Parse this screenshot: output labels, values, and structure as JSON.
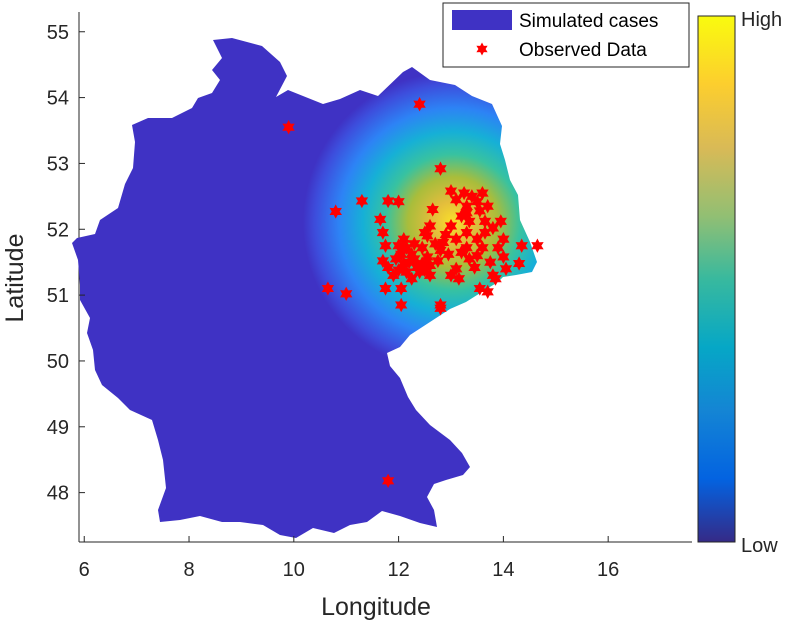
{
  "chart_data": {
    "type": "scatter",
    "title": "",
    "xlabel": "Longitude",
    "ylabel": "Latitude",
    "xlim": [
      5.9,
      17.6
    ],
    "ylim": [
      47.25,
      55.3
    ],
    "xticks": [
      6,
      8,
      10,
      12,
      14,
      16
    ],
    "yticks": [
      48,
      49,
      50,
      51,
      52,
      53,
      54,
      55
    ],
    "grid": false,
    "legend_position": "top-right",
    "legend": [
      "Simulated cases",
      "Observed Data"
    ],
    "colorbar": {
      "labels": [
        "High",
        "Low"
      ],
      "colormap": "parula"
    },
    "heat_center": {
      "x": 13.2,
      "y": 52.05
    },
    "series": [
      {
        "name": "Observed Data",
        "marker": "hexagram",
        "color": "#ff0000",
        "points": [
          [
            9.9,
            53.55
          ],
          [
            12.4,
            53.9
          ],
          [
            12.8,
            52.92
          ],
          [
            10.8,
            52.27
          ],
          [
            11.3,
            52.43
          ],
          [
            11.8,
            52.43
          ],
          [
            12.0,
            52.42
          ],
          [
            11.65,
            52.15
          ],
          [
            11.7,
            51.95
          ],
          [
            11.75,
            51.75
          ],
          [
            11.7,
            51.52
          ],
          [
            11.8,
            51.42
          ],
          [
            11.95,
            51.55
          ],
          [
            12.05,
            51.62
          ],
          [
            12.1,
            51.48
          ],
          [
            12.15,
            51.35
          ],
          [
            12.2,
            51.5
          ],
          [
            12.25,
            51.62
          ],
          [
            12.3,
            51.55
          ],
          [
            12.35,
            51.42
          ],
          [
            12.4,
            51.35
          ],
          [
            12.45,
            51.48
          ],
          [
            12.5,
            51.38
          ],
          [
            12.55,
            51.58
          ],
          [
            12.6,
            51.3
          ],
          [
            12.0,
            51.75
          ],
          [
            12.1,
            51.85
          ],
          [
            12.3,
            51.78
          ],
          [
            12.45,
            51.72
          ],
          [
            12.0,
            51.38
          ],
          [
            11.9,
            51.3
          ],
          [
            12.25,
            51.25
          ],
          [
            12.05,
            51.1
          ],
          [
            12.05,
            50.85
          ],
          [
            11.75,
            51.1
          ],
          [
            11.0,
            51.02
          ],
          [
            10.65,
            51.1
          ],
          [
            12.8,
            50.85
          ],
          [
            12.8,
            50.8
          ],
          [
            12.65,
            52.3
          ],
          [
            12.7,
            51.78
          ],
          [
            12.8,
            51.68
          ],
          [
            12.85,
            51.8
          ],
          [
            12.95,
            51.62
          ],
          [
            13.1,
            51.4
          ],
          [
            13.0,
            51.3
          ],
          [
            13.15,
            51.25
          ],
          [
            13.2,
            51.65
          ],
          [
            13.3,
            51.72
          ],
          [
            13.35,
            51.55
          ],
          [
            13.45,
            51.42
          ],
          [
            13.5,
            51.6
          ],
          [
            13.6,
            51.72
          ],
          [
            13.75,
            51.5
          ],
          [
            13.9,
            51.72
          ],
          [
            14.0,
            51.85
          ],
          [
            14.0,
            51.58
          ],
          [
            14.05,
            51.4
          ],
          [
            13.8,
            51.3
          ],
          [
            13.55,
            51.1
          ],
          [
            13.7,
            51.05
          ],
          [
            13.85,
            51.25
          ],
          [
            13.0,
            52.58
          ],
          [
            13.1,
            52.45
          ],
          [
            13.25,
            52.55
          ],
          [
            13.3,
            52.35
          ],
          [
            13.4,
            52.5
          ],
          [
            13.5,
            52.42
          ],
          [
            13.6,
            52.55
          ],
          [
            13.2,
            52.2
          ],
          [
            13.35,
            52.12
          ],
          [
            13.55,
            52.28
          ],
          [
            13.7,
            52.35
          ],
          [
            13.3,
            51.95
          ],
          [
            13.0,
            52.05
          ],
          [
            12.9,
            51.92
          ],
          [
            13.1,
            51.85
          ],
          [
            13.5,
            51.85
          ],
          [
            13.65,
            51.95
          ],
          [
            13.8,
            52.02
          ],
          [
            13.95,
            52.12
          ],
          [
            12.6,
            52.05
          ],
          [
            12.55,
            51.9
          ],
          [
            14.35,
            51.75
          ],
          [
            14.65,
            51.75
          ],
          [
            14.3,
            51.48
          ],
          [
            12.5,
            51.95
          ],
          [
            12.6,
            51.45
          ],
          [
            13.3,
            52.25
          ],
          [
            13.65,
            52.12
          ],
          [
            12.15,
            51.72
          ],
          [
            12.75,
            51.52
          ],
          [
            11.8,
            48.18
          ]
        ]
      }
    ]
  }
}
